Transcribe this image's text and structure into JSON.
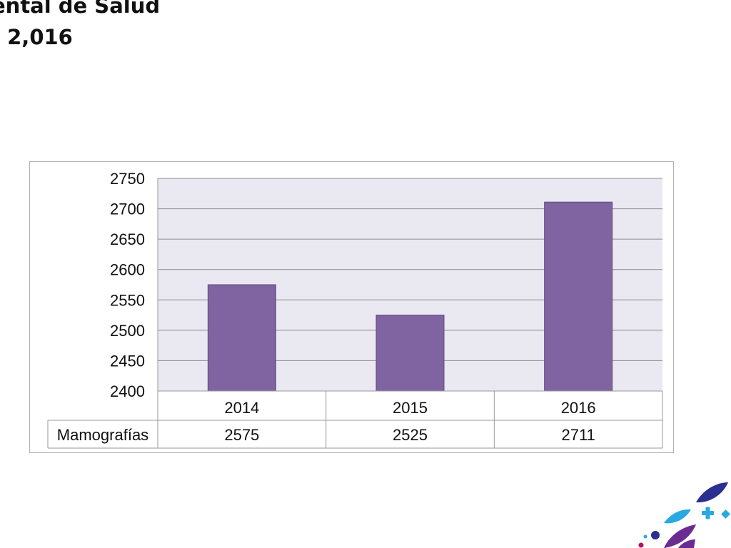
{
  "slide": {
    "title_line1": "ental de Salud",
    "title_line2": "- 2,016"
  },
  "colors": {
    "bar": "#8064a2",
    "bar_edge": "#5f4a7e",
    "plot_bg": "#eae8f0",
    "grid": "#8c8c8c",
    "table_border": "#9a9a9a",
    "logo_navy": "#2b2f8f",
    "logo_cyan": "#29a9e1",
    "logo_purple": "#6a2c91",
    "logo_magenta": "#b0135f"
  },
  "chart_data": {
    "type": "bar",
    "categories": [
      "2014",
      "2015",
      "2016"
    ],
    "series": [
      {
        "name": "Mamografías",
        "values": [
          2575,
          2525,
          2711
        ]
      }
    ],
    "value_labels": [
      "2575",
      "2525",
      "2711"
    ],
    "ylim": [
      2400,
      2750
    ],
    "yticks": [
      "2400",
      "2450",
      "2500",
      "2550",
      "2600",
      "2650",
      "2700",
      "2750"
    ],
    "grid": true,
    "legend": "data-table"
  }
}
